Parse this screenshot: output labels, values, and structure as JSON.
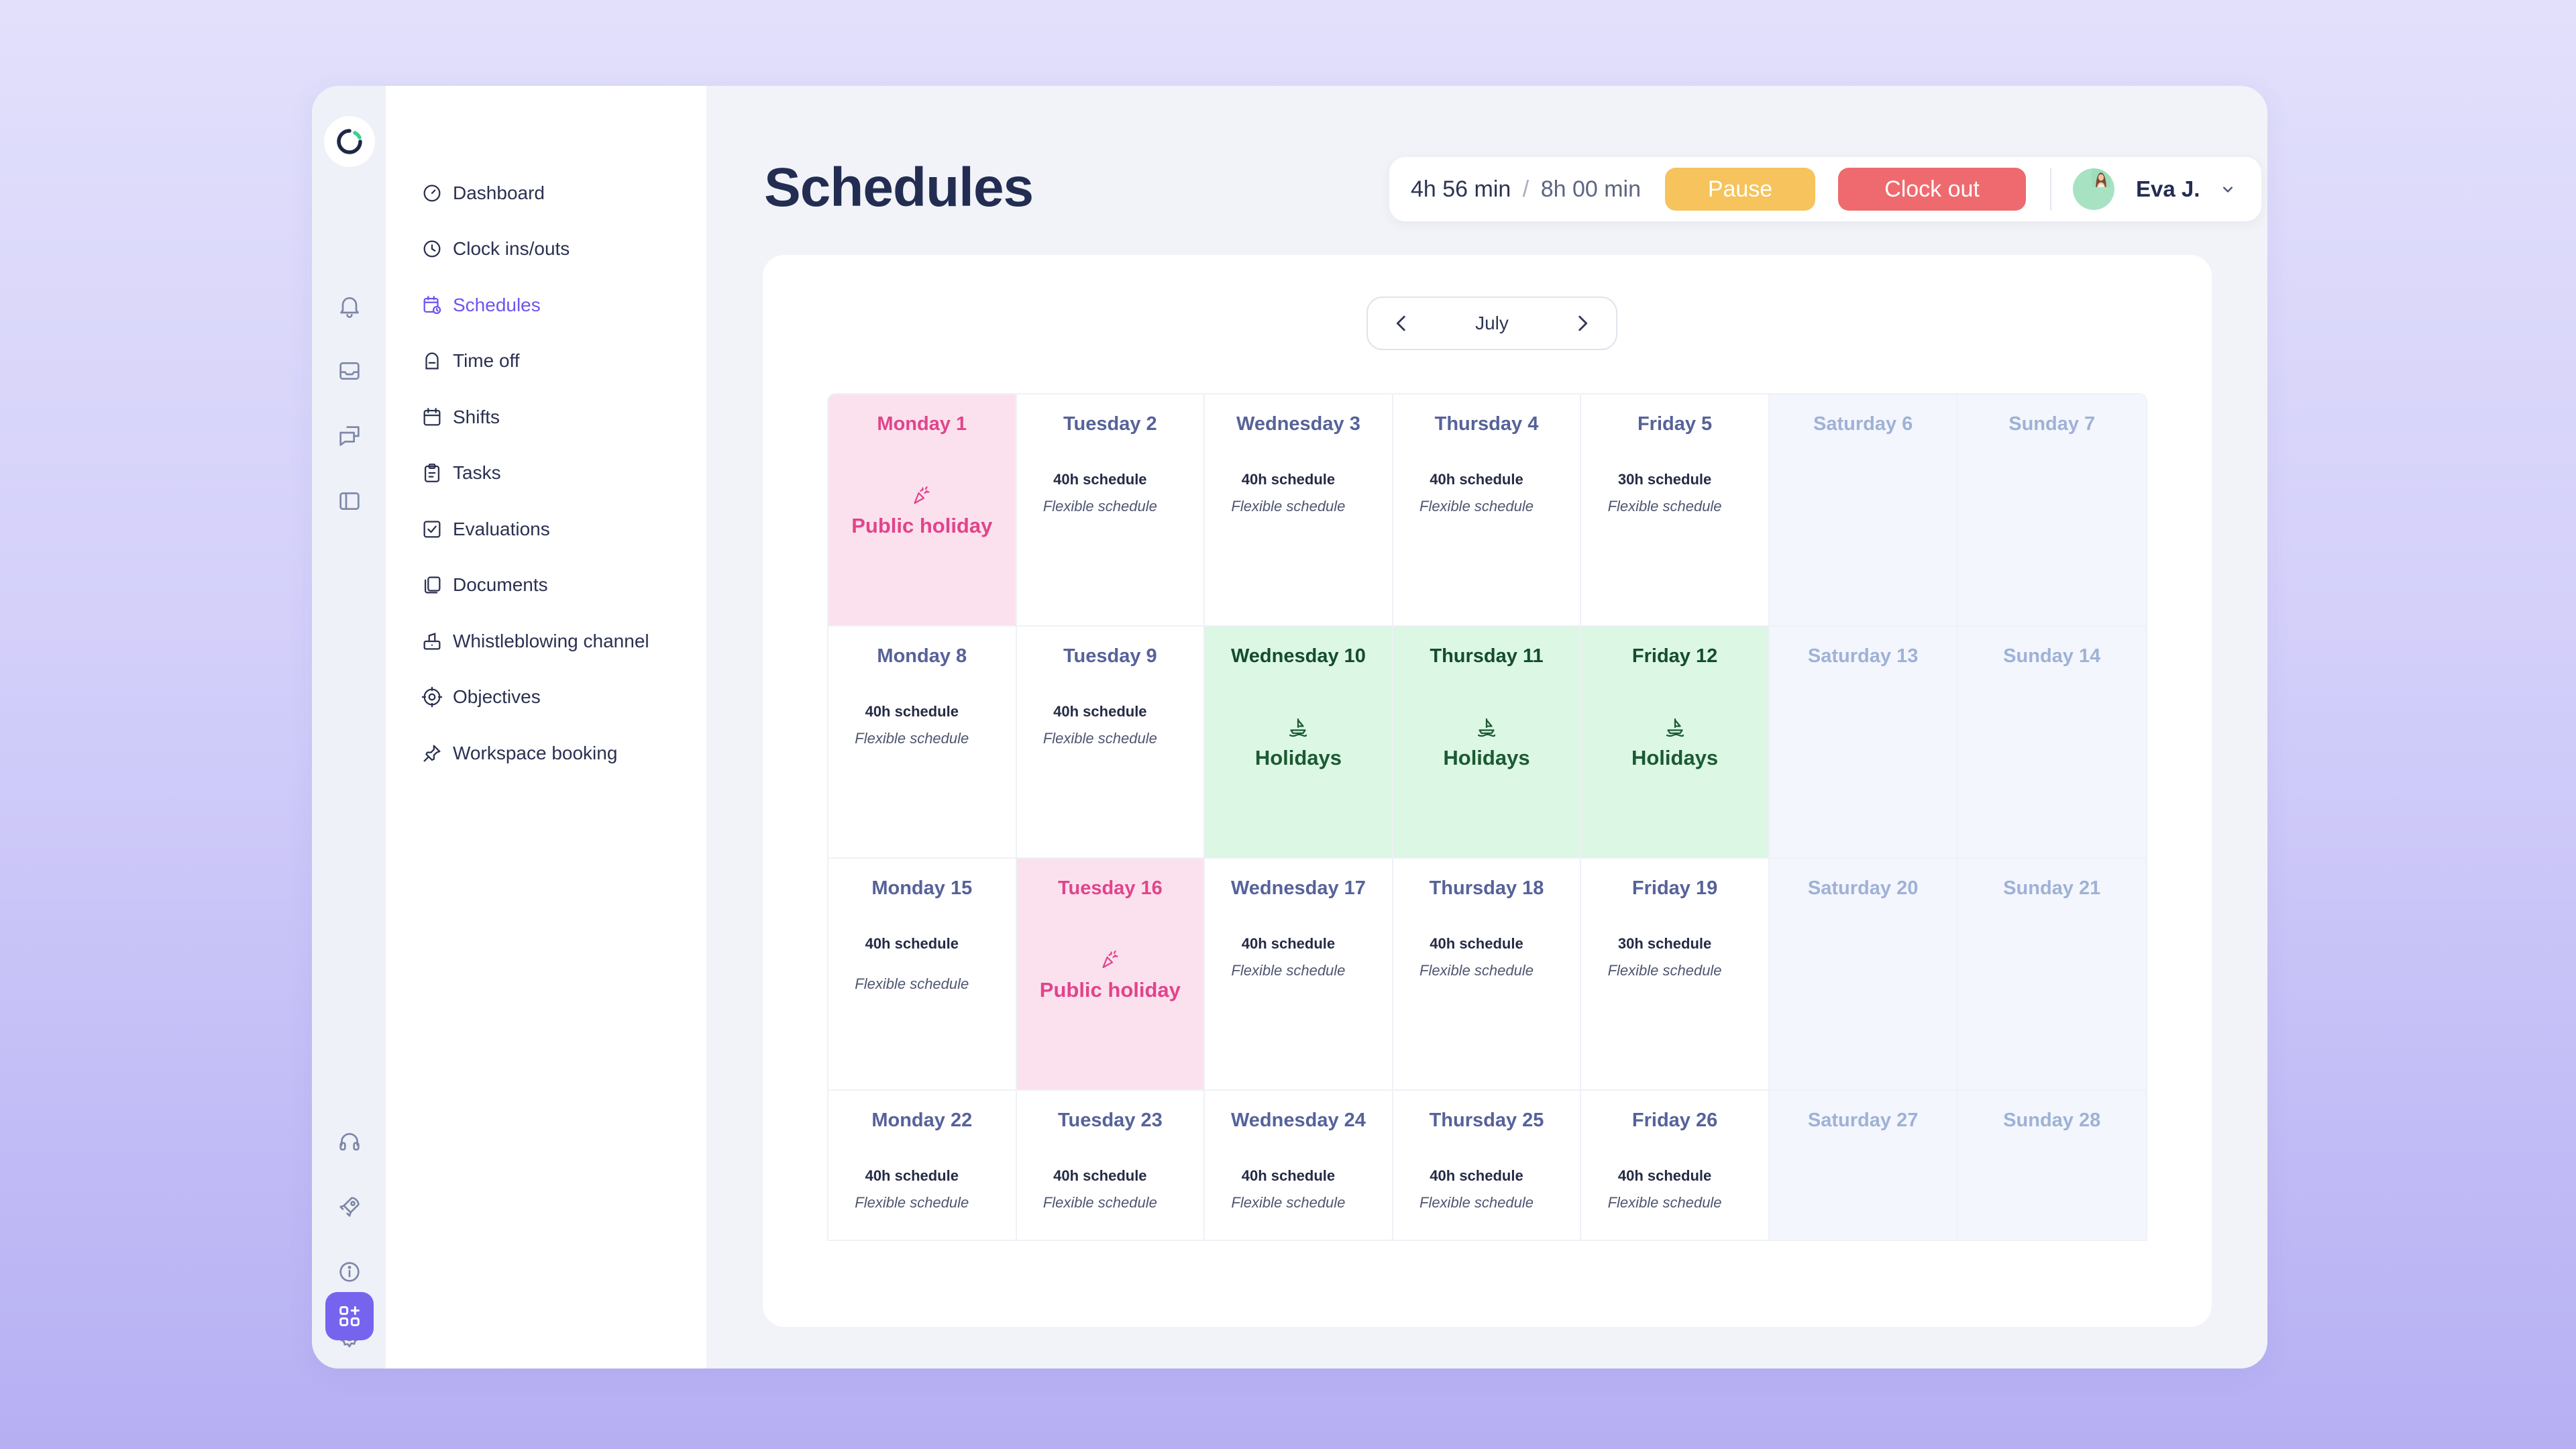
{
  "nav": {
    "items": [
      {
        "label": "Dashboard",
        "icon": "gauge-icon"
      },
      {
        "label": "Clock ins/outs",
        "icon": "clock-icon"
      },
      {
        "label": "Schedules",
        "icon": "calendar-clock-icon"
      },
      {
        "label": "Time off",
        "icon": "time-off-icon"
      },
      {
        "label": "Shifts",
        "icon": "calendar-icon"
      },
      {
        "label": "Tasks",
        "icon": "clipboard-icon"
      },
      {
        "label": "Evaluations",
        "icon": "checkbox-icon"
      },
      {
        "label": "Documents",
        "icon": "documents-icon"
      },
      {
        "label": "Whistleblowing channel",
        "icon": "megaphone-icon"
      },
      {
        "label": "Objectives",
        "icon": "target-icon"
      },
      {
        "label": "Workspace booking",
        "icon": "pin-icon"
      }
    ],
    "active": "Schedules"
  },
  "rail": {
    "icons": [
      "bell-icon",
      "inbox-icon",
      "chat-icon",
      "sidebar-icon",
      "headset-icon",
      "rocket-icon",
      "info-icon",
      "gear-icon",
      "apps-icon"
    ]
  },
  "header": {
    "title": "Schedules",
    "timer_worked": "4h 56 min",
    "timer_separator": "/",
    "timer_total": "8h 00 min",
    "pause_label": "Pause",
    "clock_out_label": "Clock out",
    "user_name": "Eva J."
  },
  "calendar": {
    "month": "July",
    "schedule_label_40": "40h schedule",
    "schedule_label_30": "30h schedule",
    "flexible_label": "Flexible schedule",
    "colors": {
      "holiday_bg": "#fbe1ee",
      "holiday_text": "#e1448a",
      "vacation_bg": "#dcf7e4",
      "vacation_text": "#1b5a33",
      "accent": "#6b56f0"
    },
    "weeks": [
      [
        {
          "day": "Monday 1",
          "type": "holiday",
          "event": "Public holiday"
        },
        {
          "day": "Tuesday 2",
          "type": "work",
          "hours": "40h schedule",
          "mode": "Flexible schedule"
        },
        {
          "day": "Wednesday 3",
          "type": "work",
          "hours": "40h schedule",
          "mode": "Flexible schedule"
        },
        {
          "day": "Thursday 4",
          "type": "work",
          "hours": "40h schedule",
          "mode": "Flexible schedule"
        },
        {
          "day": "Friday 5",
          "type": "work",
          "hours": "30h schedule",
          "mode": "Flexible schedule"
        },
        {
          "day": "Saturday 6",
          "type": "weekend"
        },
        {
          "day": "Sunday 7",
          "type": "weekend"
        }
      ],
      [
        {
          "day": "Monday 8",
          "type": "work",
          "hours": "40h schedule",
          "mode": "Flexible schedule"
        },
        {
          "day": "Tuesday 9",
          "type": "work",
          "hours": "40h schedule",
          "mode": "Flexible schedule"
        },
        {
          "day": "Wednesday 10",
          "type": "vacation",
          "event": "Holidays"
        },
        {
          "day": "Thursday 11",
          "type": "vacation",
          "event": "Holidays"
        },
        {
          "day": "Friday 12",
          "type": "vacation",
          "event": "Holidays"
        },
        {
          "day": "Saturday 13",
          "type": "weekend"
        },
        {
          "day": "Sunday 14",
          "type": "weekend"
        }
      ],
      [
        {
          "day": "Monday 15",
          "type": "work",
          "hours": "40h schedule",
          "mode": "Flexible schedule",
          "gap": true
        },
        {
          "day": "Tuesday 16",
          "type": "holiday",
          "event": "Public holiday"
        },
        {
          "day": "Wednesday 17",
          "type": "work",
          "hours": "40h schedule",
          "mode": "Flexible schedule"
        },
        {
          "day": "Thursday 18",
          "type": "work",
          "hours": "40h schedule",
          "mode": "Flexible schedule"
        },
        {
          "day": "Friday 19",
          "type": "work",
          "hours": "30h schedule",
          "mode": "Flexible schedule"
        },
        {
          "day": "Saturday 20",
          "type": "weekend"
        },
        {
          "day": "Sunday 21",
          "type": "weekend"
        }
      ],
      [
        {
          "day": "Monday 22",
          "type": "work",
          "hours": "40h schedule",
          "mode": "Flexible schedule"
        },
        {
          "day": "Tuesday 23",
          "type": "work",
          "hours": "40h schedule",
          "mode": "Flexible schedule"
        },
        {
          "day": "Wednesday 24",
          "type": "work",
          "hours": "40h schedule",
          "mode": "Flexible schedule"
        },
        {
          "day": "Thursday 25",
          "type": "work",
          "hours": "40h schedule",
          "mode": "Flexible schedule"
        },
        {
          "day": "Friday 26",
          "type": "work",
          "hours": "40h schedule",
          "mode": "Flexible schedule"
        },
        {
          "day": "Saturday 27",
          "type": "weekend"
        },
        {
          "day": "Sunday 28",
          "type": "weekend"
        }
      ]
    ]
  }
}
